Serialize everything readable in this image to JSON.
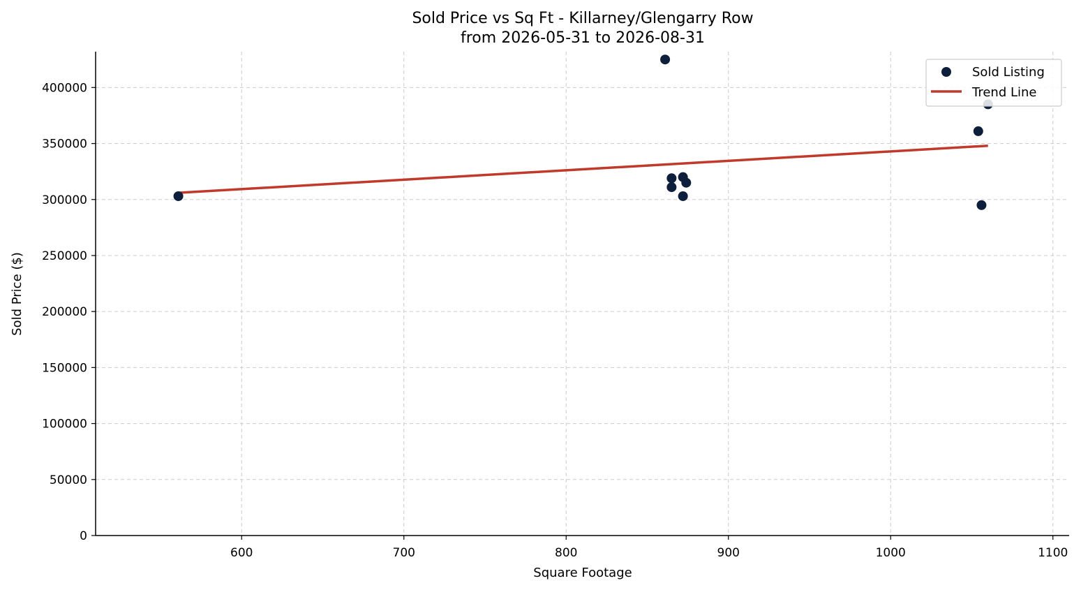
{
  "chart_data": {
    "type": "scatter",
    "title": [
      "Sold Price vs Sq Ft - Killarney/Glengarry Row",
      "from 2026-05-31 to 2026-08-31"
    ],
    "xlabel": "Square Footage",
    "ylabel": "Sold Price ($)",
    "xlim": [
      510,
      1110
    ],
    "ylim": [
      0,
      432000
    ],
    "x_ticks": [
      600,
      700,
      800,
      900,
      1000,
      1100
    ],
    "y_ticks": [
      0,
      50000,
      100000,
      150000,
      200000,
      250000,
      300000,
      350000,
      400000
    ],
    "grid": true,
    "legend": {
      "placement": "top-right",
      "entries": [
        {
          "label": "Sold Listing",
          "kind": "marker",
          "color": "#0d1f3a"
        },
        {
          "label": "Trend Line",
          "kind": "line",
          "color": "#c0392b"
        }
      ]
    },
    "series": [
      {
        "name": "Sold Listing",
        "kind": "scatter",
        "color": "#0d1f3a",
        "points": [
          {
            "x": 561,
            "y": 303000
          },
          {
            "x": 861,
            "y": 425000
          },
          {
            "x": 865,
            "y": 319000
          },
          {
            "x": 865,
            "y": 311000
          },
          {
            "x": 872,
            "y": 320000
          },
          {
            "x": 872,
            "y": 303000
          },
          {
            "x": 874,
            "y": 315000
          },
          {
            "x": 1054,
            "y": 361000
          },
          {
            "x": 1056,
            "y": 295000
          },
          {
            "x": 1060,
            "y": 385000
          }
        ]
      },
      {
        "name": "Trend Line",
        "kind": "line",
        "color": "#c0392b",
        "points": [
          {
            "x": 561,
            "y": 306000
          },
          {
            "x": 1060,
            "y": 348000
          }
        ]
      }
    ]
  }
}
